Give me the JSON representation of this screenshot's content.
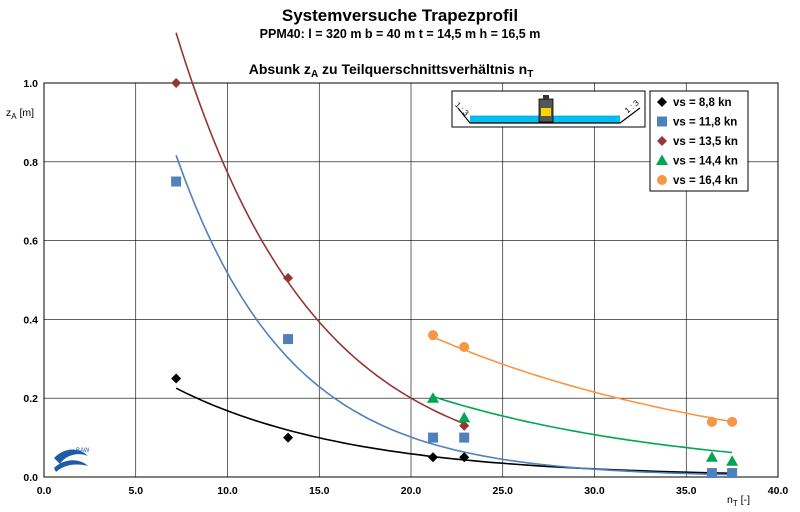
{
  "header": {
    "title": "Systemversuche Trapezprofil",
    "subtitle": "PPM40: l = 320 m b = 40 m t = 14,5 m h = 16,5 m"
  },
  "chart_data": {
    "type": "scatter",
    "title": "Absunk z",
    "title_sub": "A",
    "title_rest": " zu Teilquerschnittsverhältnis n",
    "title_sub2": "T",
    "ylabel": "z",
    "ylabel_sub": "A",
    "ylabel_unit": " [m]",
    "xlabel": "n",
    "xlabel_sub": "T",
    "xlabel_unit": " [-]",
    "xlim": [
      0,
      40
    ],
    "ylim": [
      0,
      1
    ],
    "x_ticks": [
      "0.0",
      "5.0",
      "10.0",
      "15.0",
      "20.0",
      "25.0",
      "30.0",
      "35.0",
      "40.0"
    ],
    "y_ticks": [
      "0.0",
      "0.2",
      "0.4",
      "0.6",
      "0.8",
      "1.0"
    ],
    "grid": true,
    "legend_position": "top-right",
    "series": [
      {
        "name": "vs = 8,8 kn",
        "color": "#000000",
        "marker": "diamond",
        "points": [
          [
            7.2,
            0.25
          ],
          [
            13.3,
            0.1
          ],
          [
            21.2,
            0.05
          ],
          [
            22.9,
            0.05
          ],
          [
            36.4,
            0.01
          ],
          [
            37.5,
            0.01
          ]
        ],
        "trend": {
          "a": 0.48,
          "b": 0.105,
          "x": [
            7.2,
            37.5
          ]
        }
      },
      {
        "name": "vs = 11,8 kn",
        "color": "#4f81bd",
        "marker": "square",
        "points": [
          [
            7.2,
            0.75
          ],
          [
            13.3,
            0.35
          ],
          [
            21.2,
            0.1
          ],
          [
            22.9,
            0.1
          ],
          [
            36.4,
            0.01
          ],
          [
            37.5,
            0.01
          ]
        ],
        "trend": {
          "a": 2.64,
          "b": 0.163,
          "x": [
            7.2,
            37.5
          ]
        }
      },
      {
        "name": "vs = 13,5 kn",
        "color": "#943634",
        "marker": "diamond",
        "points": [
          [
            7.2,
            1.0
          ],
          [
            13.3,
            0.505
          ],
          [
            22.9,
            0.13
          ]
        ],
        "trend": {
          "a": 2.98,
          "b": 0.135,
          "x": [
            7.2,
            22.9
          ]
        }
      },
      {
        "name": "vs = 14,4 kn",
        "color": "#00a650",
        "marker": "triangle",
        "points": [
          [
            21.2,
            0.2
          ],
          [
            22.9,
            0.15
          ],
          [
            36.4,
            0.05
          ],
          [
            37.5,
            0.04
          ]
        ],
        "trend": {
          "a": 0.96,
          "b": 0.073,
          "x": [
            21.2,
            37.5
          ]
        }
      },
      {
        "name": "vs = 16,4 kn",
        "color": "#f79646",
        "marker": "circle",
        "points": [
          [
            21.2,
            0.36
          ],
          [
            22.9,
            0.33
          ],
          [
            36.4,
            0.14
          ],
          [
            37.5,
            0.14
          ]
        ],
        "trend": {
          "a": 1.19,
          "b": 0.057,
          "x": [
            21.2,
            37.5
          ]
        }
      }
    ],
    "inset_labels": [
      "1 : 3",
      "1 : 3"
    ],
    "logo_text": "BAW"
  }
}
